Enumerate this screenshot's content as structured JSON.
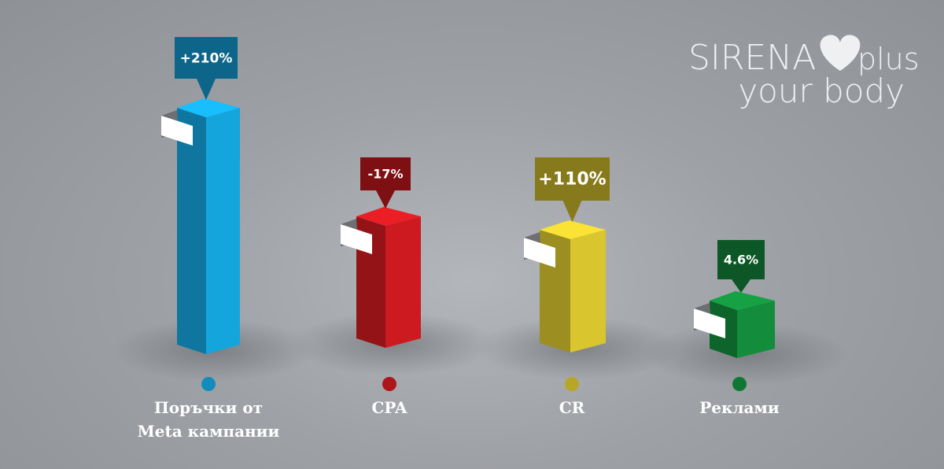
{
  "logo": {
    "brand": "SIRENA",
    "suffix": "plus",
    "tagline": "your body"
  },
  "bars": [
    {
      "label": "Поръчки от\nMeta кампании",
      "value": "+210%",
      "color": "#15a5dd"
    },
    {
      "label": "CPA",
      "value": "-17%",
      "color": "#cc1a20"
    },
    {
      "label": "CR",
      "value": "+110%",
      "color": "#d9c52e"
    },
    {
      "label": "Реклами",
      "value": "4.6%",
      "color": "#138c3c"
    }
  ]
}
